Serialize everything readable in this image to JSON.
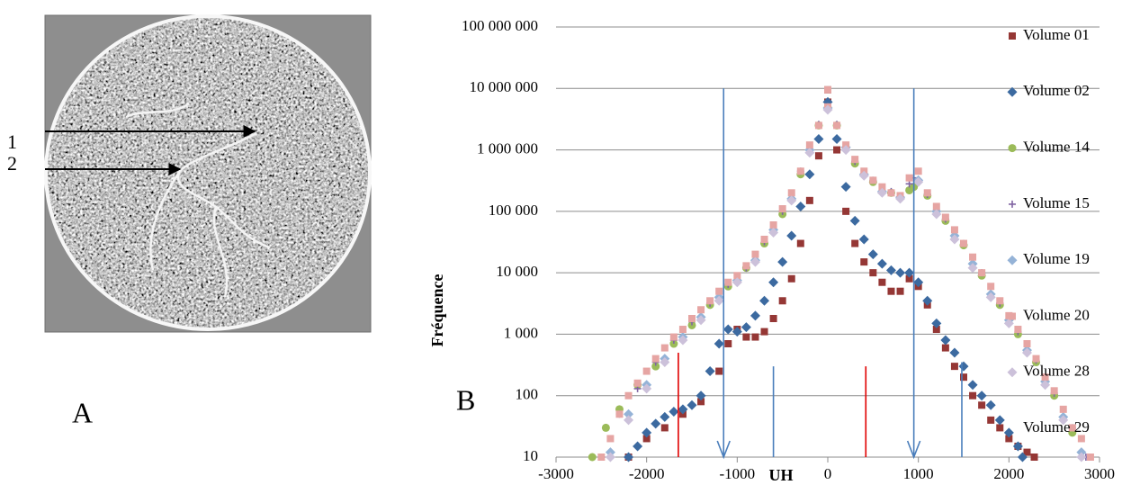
{
  "panel_a": {
    "label": "A",
    "arrow_labels": [
      "1",
      "2"
    ]
  },
  "panel_b": {
    "label": "B"
  },
  "chart_data": {
    "type": "scatter",
    "xlabel": "UH",
    "ylabel": "Fréquence",
    "xlim": [
      -3000,
      3000
    ],
    "xticks": [
      -3000,
      -2000,
      -1000,
      0,
      1000,
      2000,
      3000
    ],
    "ylim": [
      10,
      100000000
    ],
    "ylog": true,
    "yticks": [
      10,
      100,
      {
        "value": 1000,
        "label": "1 000"
      },
      {
        "value": 10000,
        "label": "10 000"
      },
      {
        "value": 100000,
        "label": "100 000"
      },
      {
        "value": 1000000,
        "label": "1 000 000"
      },
      {
        "value": 10000000,
        "label": "10 000 000"
      },
      {
        "value": 100000000,
        "label": "100 000 000"
      }
    ],
    "grid": true,
    "legend": "right",
    "reference_lines": [
      {
        "x": -1150,
        "top": 10000000,
        "color": "#4a7ebb",
        "arrow": true
      },
      {
        "x": 950,
        "top": 10000000,
        "color": "#4a7ebb",
        "arrow": true
      },
      {
        "x": -600,
        "top": 300,
        "color": "#4a7ebb",
        "arrow": false
      },
      {
        "x": 1480,
        "top": 350,
        "color": "#4a7ebb",
        "arrow": false
      },
      {
        "x": -1650,
        "top": 500,
        "color": "#e00000",
        "arrow": false
      },
      {
        "x": 420,
        "top": 300,
        "color": "#e00000",
        "arrow": false
      }
    ],
    "series": [
      {
        "name": "Volume 01",
        "color": "#953735",
        "marker": "square",
        "x": [
          -2200,
          -2000,
          -1800,
          -1600,
          -1400,
          -1200,
          -1100,
          -1000,
          -900,
          -800,
          -700,
          -600,
          -500,
          -400,
          -300,
          -200,
          -100,
          0,
          100,
          200,
          300,
          400,
          500,
          600,
          700,
          800,
          900,
          1000,
          1100,
          1200,
          1300,
          1400,
          1500,
          1600,
          1700,
          1800,
          1900,
          2000,
          2100,
          2200,
          2280,
          0
        ],
        "values": [
          10,
          20,
          30,
          50,
          80,
          250,
          700,
          1200,
          900,
          900,
          1100,
          1800,
          3500,
          8000,
          30000,
          150000,
          800000,
          6000000,
          1000000,
          100000,
          30000,
          15000,
          10000,
          7000,
          5000,
          5000,
          8000,
          6000,
          3000,
          1200,
          600,
          300,
          200,
          100,
          70,
          40,
          30,
          20,
          15,
          12,
          10,
          9500000
        ]
      },
      {
        "name": "Volume 02",
        "color": "#3c6aa0",
        "marker": "diamond",
        "x": [
          -2200,
          -2100,
          -2000,
          -1900,
          -1800,
          -1700,
          -1600,
          -1500,
          -1400,
          -1300,
          -1200,
          -1100,
          -1000,
          -900,
          -800,
          -700,
          -600,
          -500,
          -400,
          -300,
          -200,
          -100,
          0,
          100,
          200,
          300,
          400,
          500,
          600,
          700,
          800,
          900,
          1000,
          1100,
          1200,
          1300,
          1400,
          1500,
          1600,
          1700,
          1800,
          1900,
          2000,
          2100,
          2150
        ],
        "values": [
          10,
          15,
          25,
          35,
          45,
          55,
          60,
          70,
          100,
          250,
          700,
          1200,
          1100,
          1300,
          2000,
          3500,
          7000,
          15000,
          40000,
          120000,
          400000,
          1500000,
          6000000,
          1500000,
          250000,
          70000,
          35000,
          20000,
          14000,
          11000,
          10000,
          10000,
          7000,
          3500,
          1500,
          800,
          500,
          300,
          150,
          100,
          70,
          40,
          25,
          15,
          10
        ]
      },
      {
        "name": "Volume 14",
        "color": "#9bbb59",
        "marker": "circle",
        "x": [
          -2600,
          -2450,
          -2300,
          -2100,
          -1900,
          -1700,
          -1500,
          -1300,
          -1100,
          -900,
          -700,
          -500,
          -300,
          -100,
          0,
          100,
          300,
          500,
          700,
          900,
          950,
          1100,
          1300,
          1500,
          1700,
          1900,
          2100,
          2300,
          2500,
          2700
        ],
        "values": [
          10,
          30,
          60,
          150,
          300,
          700,
          1400,
          3000,
          6000,
          12000,
          30000,
          90000,
          400000,
          2500000,
          4800000,
          2500000,
          600000,
          300000,
          200000,
          220000,
          250000,
          180000,
          70000,
          28000,
          9000,
          3000,
          1000,
          350,
          100,
          25
        ]
      },
      {
        "name": "Volume 15",
        "color": "#8064a2",
        "marker": "plus",
        "x": [
          -2500,
          -2300,
          -2100,
          -1900,
          -1700,
          -1500,
          -1300,
          -1100,
          -900,
          -700,
          -500,
          -300,
          -100,
          0,
          100,
          300,
          500,
          700,
          900,
          950,
          1100,
          1300,
          1500,
          1700,
          1900,
          2100,
          2300,
          2500,
          2700,
          2850
        ],
        "values": [
          10,
          50,
          130,
          350,
          800,
          1600,
          3200,
          6500,
          12000,
          32000,
          100000,
          450000,
          2600000,
          5000000,
          2600000,
          650000,
          320000,
          210000,
          280000,
          350000,
          190000,
          75000,
          30000,
          10000,
          3200,
          1100,
          380,
          110,
          30,
          10
        ]
      },
      {
        "name": "Volume 19",
        "color": "#95b3d7",
        "marker": "diamond",
        "x": [
          -2400,
          -2200,
          -2000,
          -1800,
          -1600,
          -1400,
          -1200,
          -1000,
          -800,
          -600,
          -400,
          -200,
          0,
          200,
          400,
          600,
          800,
          1000,
          1200,
          1400,
          1600,
          1800,
          2000,
          2200,
          2400,
          2600,
          2800
        ],
        "values": [
          12,
          50,
          150,
          400,
          900,
          1900,
          4000,
          7500,
          16000,
          50000,
          160000,
          1000000,
          4800000,
          1100000,
          400000,
          210000,
          170000,
          320000,
          100000,
          40000,
          14000,
          4500,
          1700,
          550,
          170,
          45,
          12
        ]
      },
      {
        "name": "Volume 20",
        "color": "#e6a5a3",
        "marker": "square",
        "x": [
          -2500,
          -2400,
          -2300,
          -2200,
          -2100,
          -2000,
          -1900,
          -1800,
          -1700,
          -1600,
          -1500,
          -1400,
          -1300,
          -1200,
          -1100,
          -1000,
          -900,
          -800,
          -700,
          -600,
          -500,
          -400,
          -300,
          -200,
          -100,
          0,
          100,
          200,
          300,
          400,
          500,
          600,
          700,
          800,
          900,
          1000,
          1100,
          1200,
          1300,
          1400,
          1500,
          1600,
          1700,
          1800,
          1900,
          2000,
          2100,
          2200,
          2300,
          2400,
          2500,
          2600,
          2700,
          2800,
          2900,
          0
        ],
        "values": [
          10,
          20,
          50,
          100,
          160,
          250,
          400,
          600,
          900,
          1200,
          1800,
          2500,
          3500,
          5000,
          7000,
          9000,
          13000,
          20000,
          35000,
          60000,
          110000,
          200000,
          450000,
          1200000,
          2500000,
          5000000,
          2500000,
          1200000,
          700000,
          450000,
          320000,
          250000,
          200000,
          180000,
          350000,
          450000,
          200000,
          120000,
          80000,
          50000,
          30000,
          18000,
          10000,
          6000,
          3500,
          2000,
          1200,
          700,
          400,
          200,
          120,
          60,
          30,
          20,
          10,
          9500000
        ]
      },
      {
        "name": "Volume 28",
        "color": "#ccc1da",
        "marker": "diamond",
        "x": [
          -2400,
          -2200,
          -2000,
          -1800,
          -1600,
          -1400,
          -1200,
          -1000,
          -800,
          -600,
          -400,
          -200,
          0,
          200,
          400,
          600,
          800,
          1000,
          1200,
          1400,
          1600,
          1800,
          2000,
          2200,
          2400,
          2600,
          2800
        ],
        "values": [
          10,
          40,
          130,
          350,
          800,
          1700,
          3500,
          7000,
          15000,
          45000,
          150000,
          900000,
          4500000,
          1000000,
          380000,
          200000,
          160000,
          300000,
          90000,
          35000,
          12000,
          4000,
          1500,
          500,
          150,
          40,
          10
        ]
      },
      {
        "name": "Volume 29",
        "color": "#ffffff",
        "marker": "none",
        "x": [],
        "values": []
      }
    ]
  }
}
